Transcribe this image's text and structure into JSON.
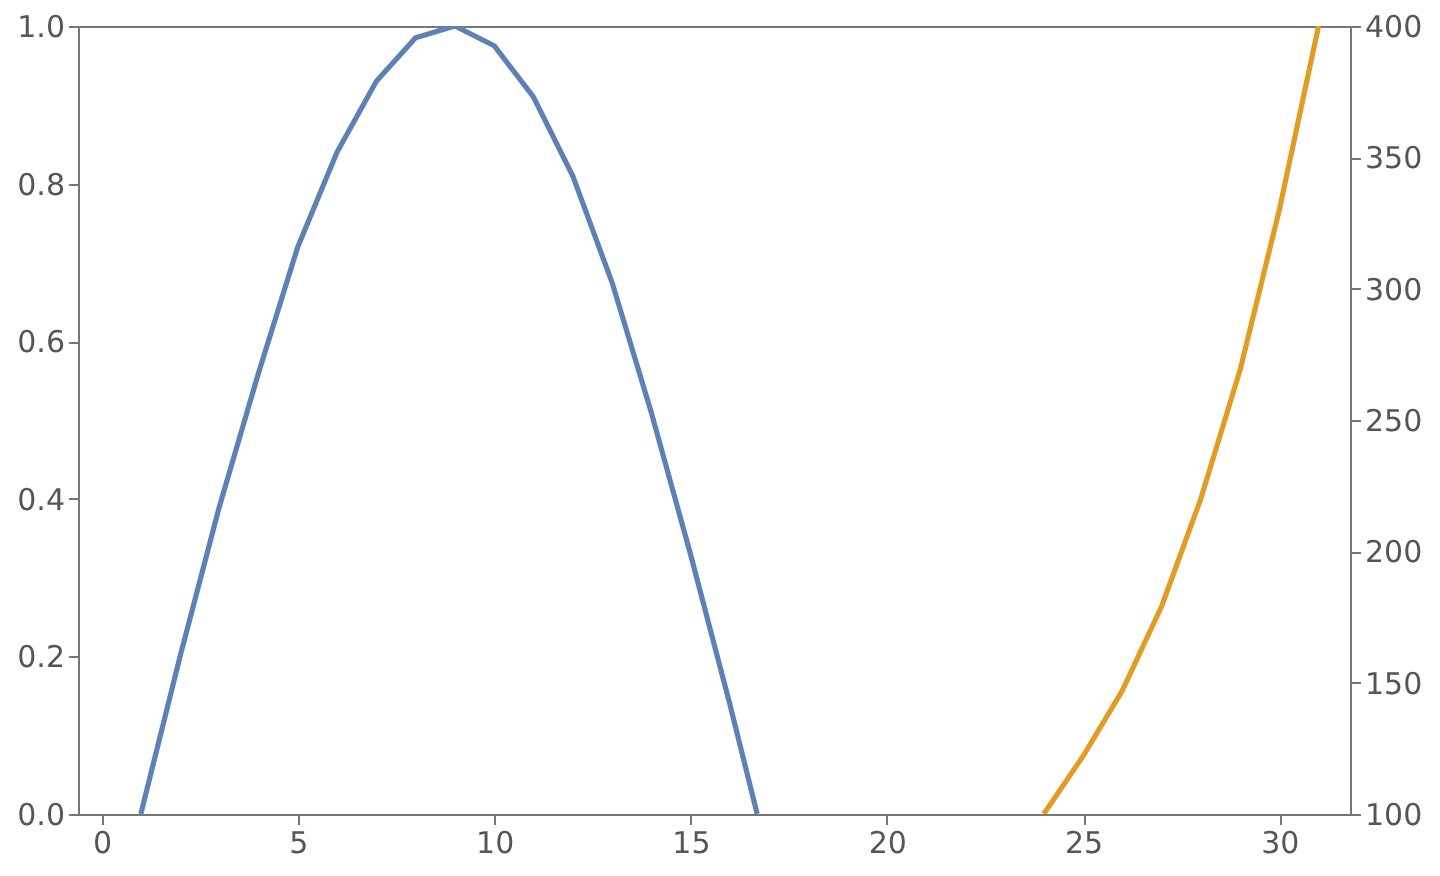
{
  "chart_data": {
    "type": "line",
    "xlim": [
      -0.6,
      31.8
    ],
    "xticks": [
      0,
      5,
      10,
      15,
      20,
      25,
      30
    ],
    "ylim": [
      0,
      1
    ],
    "yticks": [
      {
        "value": 0,
        "label": "0.0"
      },
      0.2,
      0.4,
      0.6,
      0.8,
      {
        "value": 1,
        "label": "1.0"
      }
    ],
    "y2lim": [
      100,
      400
    ],
    "y2ticks": [
      100,
      150,
      200,
      250,
      300,
      350,
      400
    ],
    "series": [
      {
        "color": "#5e81b5",
        "x": [
          1,
          2,
          3,
          4,
          5,
          6,
          7,
          8,
          9,
          10,
          11,
          12,
          13,
          14,
          15,
          16,
          16.7
        ],
        "values": [
          0,
          0.2,
          0.39,
          0.56,
          0.72,
          0.84,
          0.93,
          0.985,
          1,
          0.975,
          0.91,
          0.81,
          0.675,
          0.51,
          0.33,
          0.14,
          0
        ]
      },
      {
        "color": "#e19c24",
        "axis": "y2",
        "x": [
          24,
          25,
          26,
          27,
          28,
          29,
          30,
          31
        ],
        "values": [
          100,
          122,
          147,
          179,
          220,
          269,
          330,
          400
        ]
      }
    ]
  }
}
